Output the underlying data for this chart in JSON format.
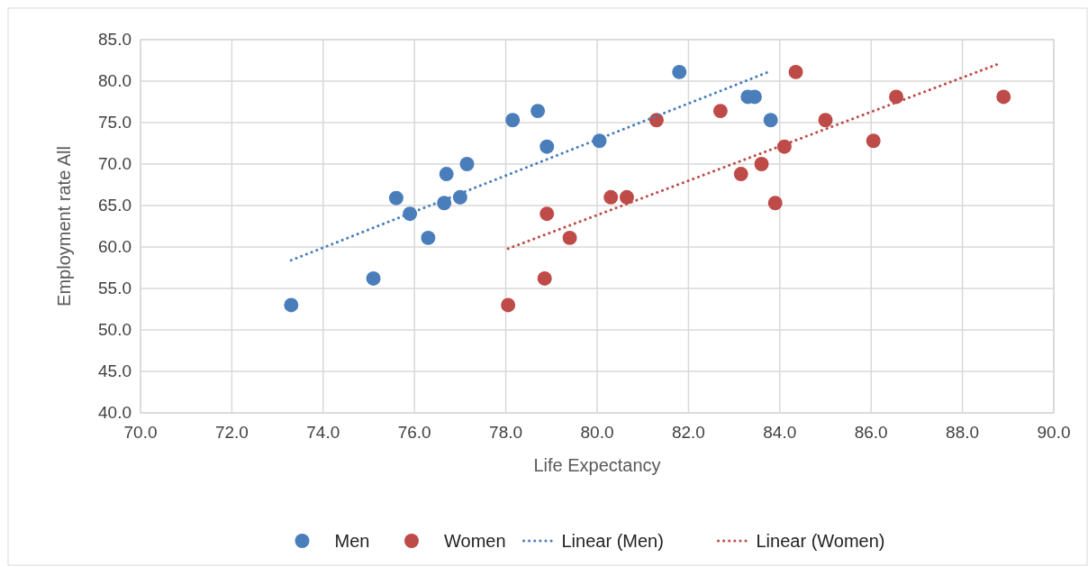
{
  "chart_data": {
    "type": "scatter",
    "xlabel": "Life Expectancy",
    "ylabel": "Employment rate All",
    "xlim": [
      70,
      90
    ],
    "xticks": [
      {
        "value": 70,
        "label": "70.0"
      },
      {
        "value": 72,
        "label": "72.0"
      },
      {
        "value": 74,
        "label": "74.0"
      },
      {
        "value": 76,
        "label": "76.0"
      },
      {
        "value": 78,
        "label": "78.0"
      },
      {
        "value": 80,
        "label": "80.0"
      },
      {
        "value": 82,
        "label": "82.0"
      },
      {
        "value": 84,
        "label": "84.0"
      },
      {
        "value": 86,
        "label": "86.0"
      },
      {
        "value": 88,
        "label": "88.0"
      },
      {
        "value": 90,
        "label": "90.0"
      }
    ],
    "ylim": [
      40,
      85
    ],
    "yticks": [
      {
        "value": 40,
        "label": "40.0"
      },
      {
        "value": 45,
        "label": "45.0"
      },
      {
        "value": 50,
        "label": "50.0"
      },
      {
        "value": 55,
        "label": "55.0"
      },
      {
        "value": 60,
        "label": "60.0"
      },
      {
        "value": 65,
        "label": "65.0"
      },
      {
        "value": 70,
        "label": "70.0"
      },
      {
        "value": 75,
        "label": "75.0"
      },
      {
        "value": 80,
        "label": "80.0"
      },
      {
        "value": 85,
        "label": "85.0"
      }
    ],
    "grid": true,
    "legend": "bottom",
    "marker": "circle",
    "series": [
      {
        "name": "Men",
        "color": "#4a7ebb",
        "x": [
          73.3,
          75.1,
          75.6,
          75.9,
          76.3,
          76.65,
          76.7,
          77.0,
          77.15,
          78.15,
          78.7,
          78.9,
          80.05,
          81.8,
          83.3,
          83.45,
          83.8
        ],
        "values": [
          53.0,
          56.2,
          65.9,
          64.0,
          61.1,
          65.3,
          68.8,
          66.0,
          70.0,
          75.3,
          76.4,
          72.1,
          72.8,
          81.1,
          78.1,
          78.1,
          75.3
        ]
      },
      {
        "name": "Women",
        "color": "#be4b48",
        "x": [
          78.05,
          78.85,
          78.9,
          79.4,
          80.3,
          80.65,
          81.3,
          82.7,
          83.15,
          83.6,
          83.9,
          84.1,
          84.35,
          85.0,
          86.05,
          86.55,
          88.9
        ],
        "values": [
          53.0,
          56.2,
          64.0,
          61.1,
          66.0,
          66.0,
          75.3,
          76.4,
          68.8,
          70.0,
          65.3,
          72.1,
          81.1,
          75.3,
          72.8,
          78.1,
          78.1
        ]
      },
      {
        "name": "Linear (Men)",
        "type": "line",
        "line_style": "dotted",
        "marker": "none",
        "color": "#4a7ebb",
        "x": [
          73.3,
          83.75
        ],
        "values": [
          58.4,
          81.1
        ]
      },
      {
        "name": "Linear (Women)",
        "type": "line",
        "line_style": "dotted",
        "marker": "none",
        "color": "#be4b48",
        "x": [
          78.05,
          88.85
        ],
        "values": [
          59.8,
          82.2
        ]
      }
    ]
  }
}
